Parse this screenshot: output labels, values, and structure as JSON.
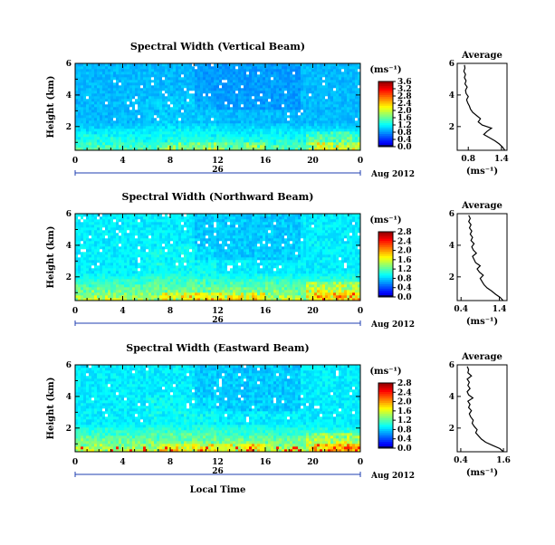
{
  "chart_data": [
    {
      "type": "heatmap",
      "title": "Spectral Width (Vertical Beam)",
      "ylabel": "Height (km)",
      "ylim": [
        0.5,
        6
      ],
      "yticks": [
        "6",
        "4",
        "2"
      ],
      "xticks": [
        "0",
        "4",
        "8",
        "12",
        "16",
        "20",
        "0"
      ],
      "xlim": [
        0,
        24
      ],
      "date_day": "26",
      "date_label": "Aug 2012",
      "colorbar": {
        "unit": "(ms⁻¹)",
        "ticks": [
          "3.6",
          "3.2",
          "2.8",
          "2.4",
          "2.0",
          "1.6",
          "1.2",
          "0.8",
          "0.4",
          "0.0"
        ],
        "max": 3.6
      },
      "profile": {
        "title": "Average",
        "xlabel": "(ms⁻¹)",
        "xticks": [
          "0.8",
          "1.4"
        ],
        "xlim": [
          0.6,
          1.5
        ],
        "yticks": [
          "6",
          "4",
          "2"
        ],
        "height": [
          0.5,
          0.7,
          0.9,
          1.1,
          1.3,
          1.5,
          1.7,
          1.9,
          2.1,
          2.3,
          2.5,
          2.7,
          2.9,
          3.1,
          3.3,
          3.5,
          3.7,
          3.9,
          4.1,
          4.3,
          4.5,
          4.7,
          4.9,
          5.1,
          5.3,
          5.5,
          5.7,
          5.9
        ],
        "values": [
          1.46,
          1.42,
          1.36,
          1.28,
          1.18,
          1.08,
          1.14,
          1.22,
          1.05,
          0.98,
          1.02,
          0.95,
          0.88,
          0.84,
          0.82,
          0.79,
          0.77,
          0.8,
          0.76,
          0.75,
          0.78,
          0.74,
          0.76,
          0.73,
          0.75,
          0.72,
          0.74,
          0.73
        ]
      }
    },
    {
      "type": "heatmap",
      "title": "Spectral Width (Northward Beam)",
      "ylabel": "Height (km)",
      "ylim": [
        0.5,
        6
      ],
      "yticks": [
        "6",
        "4",
        "2"
      ],
      "xticks": [
        "0",
        "4",
        "8",
        "12",
        "16",
        "20",
        "0"
      ],
      "xlim": [
        0,
        24
      ],
      "date_day": "26",
      "date_label": "Aug 2012",
      "colorbar": {
        "unit": "(ms⁻¹)",
        "ticks": [
          "2.8",
          "2.4",
          "2.0",
          "1.6",
          "1.2",
          "0.8",
          "0.4",
          "0.0"
        ],
        "max": 2.8
      },
      "profile": {
        "title": "Average",
        "xlabel": "(ms⁻¹)",
        "xticks": [
          "0.4",
          "1.4"
        ],
        "xlim": [
          0.3,
          1.6
        ],
        "yticks": [
          "6",
          "4",
          "2"
        ],
        "height": [
          0.5,
          0.7,
          0.9,
          1.1,
          1.3,
          1.5,
          1.7,
          1.9,
          2.1,
          2.3,
          2.5,
          2.7,
          2.9,
          3.1,
          3.3,
          3.5,
          3.7,
          3.9,
          4.1,
          4.3,
          4.5,
          4.7,
          4.9,
          5.1,
          5.3,
          5.5,
          5.7,
          5.9
        ],
        "values": [
          1.5,
          1.42,
          1.3,
          1.2,
          1.08,
          1.0,
          0.95,
          0.9,
          0.98,
          0.88,
          0.82,
          0.9,
          0.78,
          0.74,
          0.7,
          0.8,
          0.72,
          0.68,
          0.74,
          0.66,
          0.7,
          0.64,
          0.68,
          0.62,
          0.66,
          0.6,
          0.64,
          0.6
        ]
      }
    },
    {
      "type": "heatmap",
      "title": "Spectral Width (Eastward Beam)",
      "ylabel": "Height (km)",
      "ylim": [
        0.5,
        6
      ],
      "yticks": [
        "6",
        "4",
        "2"
      ],
      "xticks": [
        "0",
        "4",
        "8",
        "12",
        "16",
        "20",
        "0"
      ],
      "xlim": [
        0,
        24
      ],
      "date_day": "26",
      "date_label": "Aug 2012",
      "xlabel": "Local Time",
      "colorbar": {
        "unit": "(ms⁻¹)",
        "ticks": [
          "2.8",
          "2.4",
          "2.0",
          "1.6",
          "1.2",
          "0.8",
          "0.4",
          "0.0"
        ],
        "max": 2.8
      },
      "profile": {
        "title": "Average",
        "xlabel": "(ms⁻¹)",
        "xticks": [
          "0.4",
          "1.6"
        ],
        "xlim": [
          0.3,
          1.7
        ],
        "yticks": [
          "6",
          "4",
          "2"
        ],
        "height": [
          0.5,
          0.7,
          0.9,
          1.1,
          1.3,
          1.5,
          1.7,
          1.9,
          2.1,
          2.3,
          2.5,
          2.7,
          2.9,
          3.1,
          3.3,
          3.5,
          3.7,
          3.9,
          4.1,
          4.3,
          4.5,
          4.7,
          4.9,
          5.1,
          5.3,
          5.5,
          5.7,
          5.9
        ],
        "values": [
          1.6,
          1.5,
          1.3,
          1.1,
          0.98,
          0.9,
          0.82,
          0.86,
          0.78,
          0.72,
          0.75,
          0.68,
          0.64,
          0.7,
          0.62,
          0.66,
          0.6,
          0.74,
          0.62,
          0.58,
          0.66,
          0.6,
          0.64,
          0.58,
          0.7,
          0.6,
          0.62,
          0.58
        ]
      }
    }
  ]
}
